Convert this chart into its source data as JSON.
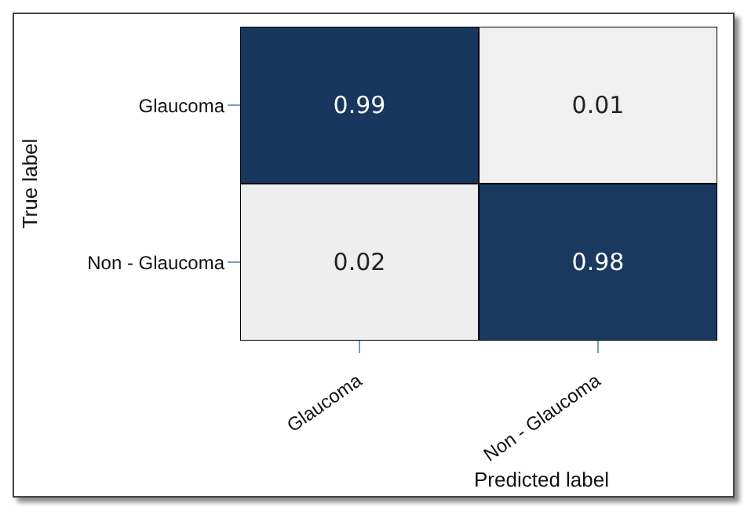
{
  "chart_data": {
    "type": "heatmap",
    "xlabel": "Predicted label",
    "ylabel": "True label",
    "categories": [
      "Glaucoma",
      "Non - Glaucoma"
    ],
    "y_categories": [
      "Glaucoma",
      "Non - Glaucoma"
    ],
    "cells": [
      [
        0.99,
        0.01
      ],
      [
        0.02,
        0.98
      ]
    ],
    "data_labels": true
  }
}
